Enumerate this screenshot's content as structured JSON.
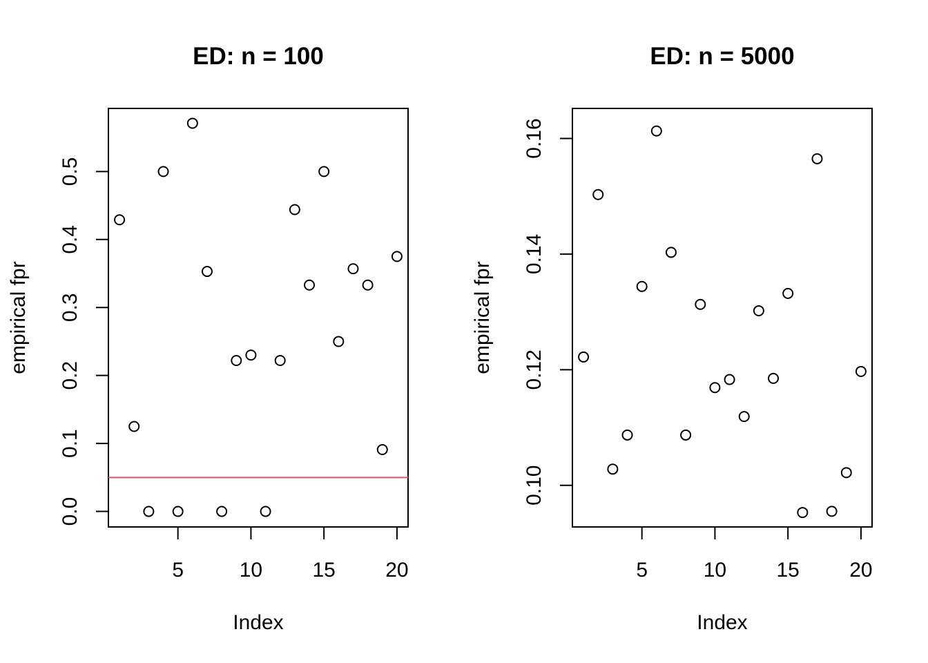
{
  "chart_data": [
    {
      "type": "scatter",
      "title": "ED: n = 100",
      "xlabel": "Index",
      "ylabel": "empirical fpr",
      "xlim": [
        0.24,
        20.76
      ],
      "ylim": [
        -0.0228,
        0.5928
      ],
      "xticks": [
        5,
        10,
        15,
        20
      ],
      "xtick_labels": [
        "5",
        "10",
        "15",
        "20"
      ],
      "yticks": [
        0,
        0.1,
        0.2,
        0.3,
        0.4,
        0.5
      ],
      "ytick_labels": [
        "0.0",
        "0.1",
        "0.2",
        "0.3",
        "0.4",
        "0.5"
      ],
      "x": [
        1,
        2,
        3,
        4,
        5,
        6,
        7,
        8,
        9,
        10,
        11,
        12,
        13,
        14,
        15,
        16,
        17,
        18,
        19,
        20
      ],
      "y": [
        0.429,
        0.125,
        0.0,
        0.5,
        0.0,
        0.571,
        0.353,
        0.0,
        0.222,
        0.23,
        0.0,
        0.222,
        0.444,
        0.333,
        0.5,
        0.25,
        0.357,
        0.333,
        0.091,
        0.375
      ],
      "hline": {
        "y": 0.05,
        "color": "#df536b"
      },
      "grid": false,
      "legend": "none"
    },
    {
      "type": "scatter",
      "title": "ED: n = 5000",
      "xlabel": "Index",
      "ylabel": "empirical fpr",
      "xlim": [
        0.24,
        20.76
      ],
      "ylim": [
        0.0928,
        0.1652
      ],
      "xticks": [
        5,
        10,
        15,
        20
      ],
      "xtick_labels": [
        "5",
        "10",
        "15",
        "20"
      ],
      "yticks": [
        0.1,
        0.12,
        0.14,
        0.16
      ],
      "ytick_labels": [
        "0.10",
        "0.12",
        "0.14",
        "0.16"
      ],
      "x": [
        1,
        2,
        3,
        4,
        5,
        6,
        7,
        8,
        9,
        10,
        11,
        12,
        13,
        14,
        15,
        16,
        17,
        18,
        19,
        20
      ],
      "y": [
        0.1222,
        0.1503,
        0.1028,
        0.1087,
        0.1344,
        0.1613,
        0.1403,
        0.1087,
        0.1313,
        0.1169,
        0.1183,
        0.1119,
        0.1302,
        0.1185,
        0.1332,
        0.0953,
        0.1565,
        0.0955,
        0.1022,
        0.1197
      ],
      "grid": false,
      "legend": "none"
    }
  ]
}
